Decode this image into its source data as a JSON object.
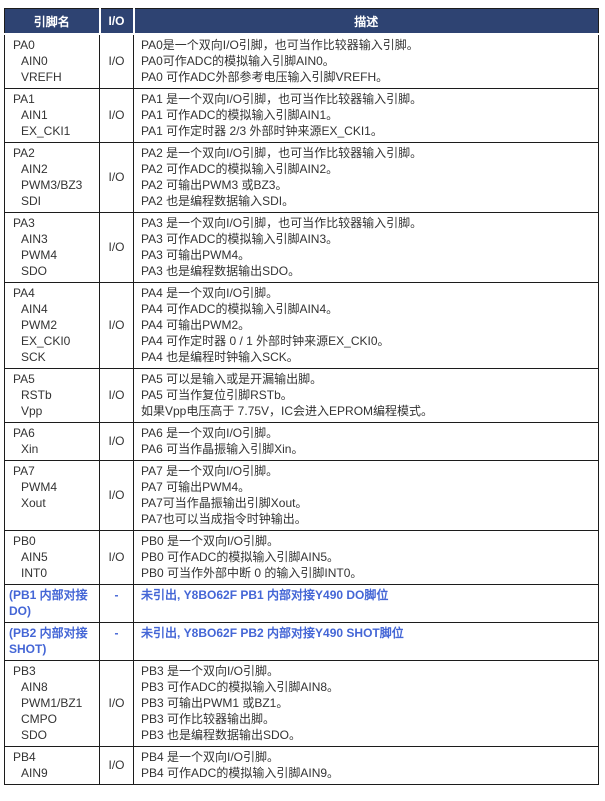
{
  "colors": {
    "header_bg": "#2E4372",
    "header_text": "#FFFFFF",
    "body_text": "#333333",
    "highlight": "#4466D6",
    "border": "#1C1C1C",
    "page_bg": "#FFFFFF"
  },
  "table": {
    "headers": [
      "引脚名",
      "I/O",
      "描述"
    ],
    "rows": [
      {
        "pin": [
          "PA0",
          "AIN0",
          "VREFH"
        ],
        "io": "I/O",
        "highlight": false,
        "desc": [
          "PA0是一个双向I/O引脚，也可当作比较器输入引脚。",
          "PA0可作ADC的模拟输入引脚AIN0。",
          "PA0 可作ADC外部参考电压输入引脚VREFH。"
        ]
      },
      {
        "pin": [
          "PA1",
          "AIN1",
          "EX_CKI1"
        ],
        "io": "I/O",
        "highlight": false,
        "desc": [
          "PA1 是一个双向I/O引脚，也可当作比较器输入引脚。",
          "PA1 可作ADC的模拟输入引脚AIN1。",
          "PA1 可作定时器 2/3 外部时钟来源EX_CKI1。"
        ]
      },
      {
        "pin": [
          "PA2",
          "AIN2",
          "PWM3/BZ3",
          "SDI"
        ],
        "io": "I/O",
        "highlight": false,
        "desc": [
          "PA2 是一个双向I/O引脚，也可当作比较器输入引脚。",
          "PA2 可作ADC的模拟输入引脚AIN2。",
          "PA2 可输出PWM3 或BZ3。",
          "PA2 也是编程数据输入SDI。"
        ]
      },
      {
        "pin": [
          "PA3",
          "AIN3",
          "PWM4",
          "SDO"
        ],
        "io": "I/O",
        "highlight": false,
        "desc": [
          "PA3 是一个双向I/O引脚，也可当作比较器输入引脚。",
          "PA3 可作ADC的模拟输入引脚AIN3。",
          "PA3 可输出PWM4。",
          "PA3 也是编程数据输出SDO。"
        ]
      },
      {
        "pin": [
          "PA4",
          "AIN4",
          "PWM2",
          "EX_CKI0",
          "SCK"
        ],
        "io": "I/O",
        "highlight": false,
        "desc": [
          "PA4 是一个双向I/O引脚。",
          "PA4 可作ADC的模拟输入引脚AIN4。",
          "PA4 可输出PWM2。",
          "PA4 可作定时器 0 / 1 外部时钟来源EX_CKI0。",
          "PA4 也是编程时钟输入SCK。"
        ]
      },
      {
        "pin": [
          "PA5",
          "RSTb",
          "Vpp"
        ],
        "io": "I/O",
        "highlight": false,
        "desc": [
          "PA5 可以是输入或是开漏输出脚。",
          "PA5 可当作复位引脚RSTb。",
          "如果Vpp电压高于 7.75V，IC会进入EPROM编程模式。"
        ]
      },
      {
        "pin": [
          "PA6",
          "Xin"
        ],
        "io": "I/O",
        "highlight": false,
        "desc": [
          "PA6 是一个双向I/O引脚。",
          "PA6 可当作晶振输入引脚Xin。"
        ]
      },
      {
        "pin": [
          "PA7",
          "PWM4",
          "Xout"
        ],
        "io": "I/O",
        "highlight": false,
        "desc": [
          "PA7 是一个双向I/O引脚。",
          "PA7 可输出PWM4。",
          "PA7可当作晶振输出引脚Xout。",
          "PA7也可以当成指令时钟输出。"
        ]
      },
      {
        "pin": [
          "PB0",
          "AIN5",
          "INT0"
        ],
        "io": "I/O",
        "highlight": false,
        "desc": [
          "PB0 是一个双向I/O引脚。",
          "PB0 可作ADC的模拟输入引脚AIN5。",
          "PB0 可当作外部中断 0 的输入引脚INT0。"
        ]
      },
      {
        "pin": [
          "(PB1 内部对接 DO)"
        ],
        "io": "-",
        "highlight": true,
        "desc": [
          "未引出, Y8BO62F PB1 内部对接Y490 DO脚位"
        ]
      },
      {
        "pin": [
          "(PB2 内部对接 SHOT)"
        ],
        "io": "-",
        "highlight": true,
        "desc": [
          "未引出, Y8BO62F PB2 内部对接Y490 SHOT脚位"
        ]
      },
      {
        "pin": [
          "PB3",
          "AIN8",
          "PWM1/BZ1",
          "CMPO",
          "SDO"
        ],
        "io": "I/O",
        "highlight": false,
        "desc": [
          "PB3 是一个双向I/O引脚。",
          "PB3 可作ADC的模拟输入引脚AIN8。",
          "PB3 可输出PWM1 或BZ1。",
          "PB3 可作比较器输出脚。",
          "PB3 也是编程数据输出SDO。"
        ]
      },
      {
        "pin": [
          "PB4",
          "AIN9"
        ],
        "io": "I/O",
        "highlight": false,
        "desc": [
          "PB4 是一个双向I/O引脚。",
          "PB4 可作ADC的模拟输入引脚AIN9。"
        ]
      }
    ]
  }
}
